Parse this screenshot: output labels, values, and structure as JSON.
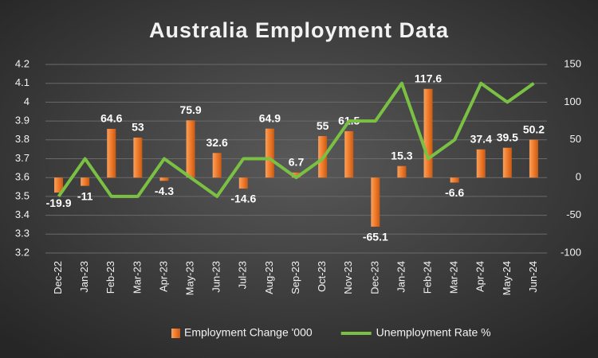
{
  "chart_data": {
    "type": "combo",
    "title": "Australia Employment Data",
    "categories": [
      "Dec-22",
      "Jan-23",
      "Feb-23",
      "Mar-23",
      "Apr-23",
      "May-23",
      "Jun-23",
      "Jul-23",
      "Aug-23",
      "Sep-23",
      "Oct-23",
      "Nov-23",
      "Dec-23",
      "Jan-24",
      "Feb-24",
      "Mar-24",
      "Apr-24",
      "May-24",
      "Jun-24"
    ],
    "series": [
      {
        "name": "Employment Change '000",
        "type": "bar",
        "axis": "y2",
        "color": "#f07a2a",
        "values": [
          -19.9,
          -11,
          64.6,
          53,
          -4.3,
          75.9,
          32.6,
          -14.6,
          64.9,
          6.7,
          55,
          61.5,
          -65.1,
          15.3,
          117.6,
          -6.6,
          37.4,
          39.5,
          50.2
        ]
      },
      {
        "name": "Unemployment Rate %",
        "type": "line",
        "axis": "y",
        "color": "#7ac143",
        "values": [
          3.5,
          3.7,
          3.5,
          3.5,
          3.7,
          3.6,
          3.5,
          3.7,
          3.7,
          3.6,
          3.7,
          3.9,
          3.9,
          4.1,
          3.7,
          3.8,
          4.1,
          4.0,
          4.1
        ]
      }
    ],
    "ylim": [
      3.2,
      4.2
    ],
    "yticks": [
      3.2,
      3.3,
      3.4,
      3.5,
      3.6,
      3.7,
      3.8,
      3.9,
      4,
      4.1,
      4.2
    ],
    "y2lim": [
      -100,
      150
    ],
    "y2ticks": [
      -100,
      -50,
      0,
      50,
      100,
      150
    ],
    "grid": true,
    "legend": "bottom"
  }
}
